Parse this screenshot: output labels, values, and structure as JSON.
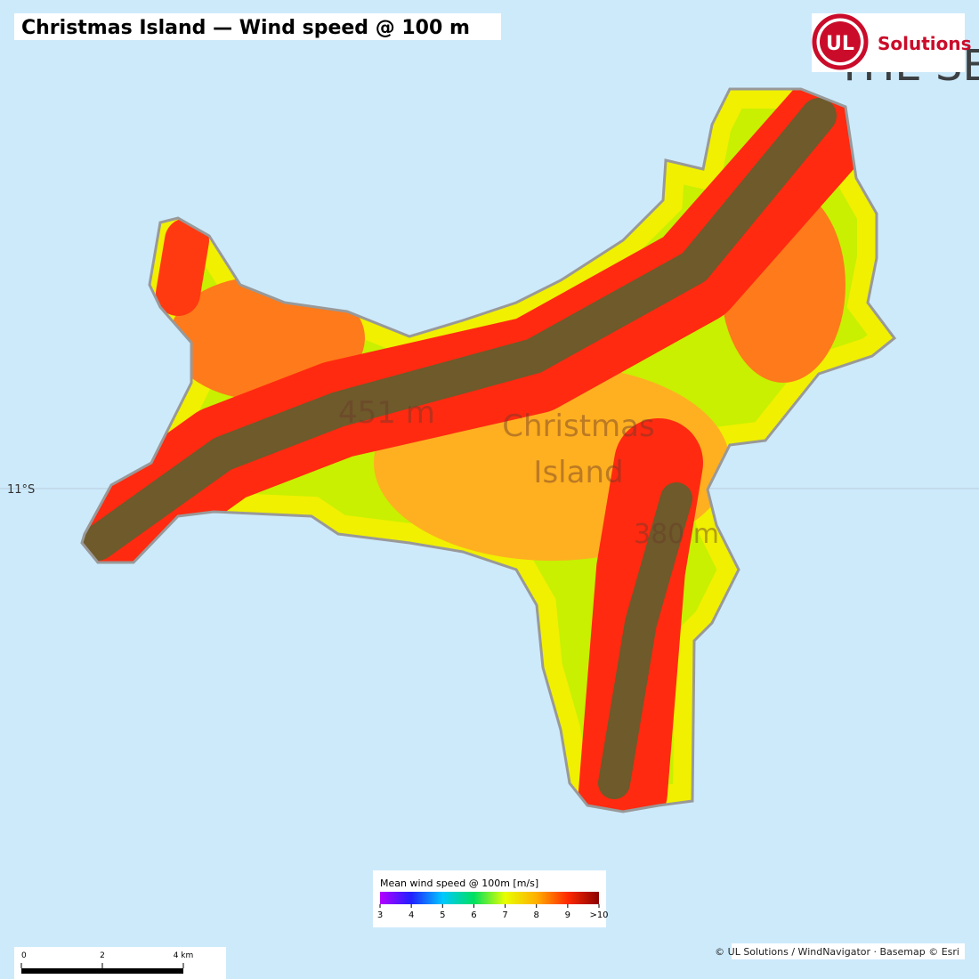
{
  "title": "Christmas Island — Wind speed @ 100 m",
  "logo": {
    "mark": "UL",
    "text": "Solutions"
  },
  "places": [
    {
      "label": "THE SETTLEMENT"
    },
    {
      "label": "451 m"
    },
    {
      "label": "Christmas"
    },
    {
      "label": "Island"
    },
    {
      "label": "380 m"
    }
  ],
  "graticule": {
    "label": "11°S"
  },
  "legend": {
    "title": "Mean wind speed @ 100m  [m/s]",
    "range": [
      3,
      10
    ],
    "ticks": [
      3,
      4,
      5,
      6,
      7,
      8,
      9,
      {
        "value": 10,
        "label": ">10"
      }
    ],
    "colors": [
      "#b400ff",
      "#2020ff",
      "#00c8ff",
      "#00e060",
      "#e8ff00",
      "#ffb000",
      "#ff2a00",
      "#8b0000"
    ]
  },
  "scalebar": {
    "range": [
      0,
      4
    ],
    "ticks": [
      0,
      2,
      {
        "value": 4,
        "label": "4 km"
      }
    ]
  },
  "attribution": "© UL Solutions / WindNavigator · Basemap © Esri"
}
